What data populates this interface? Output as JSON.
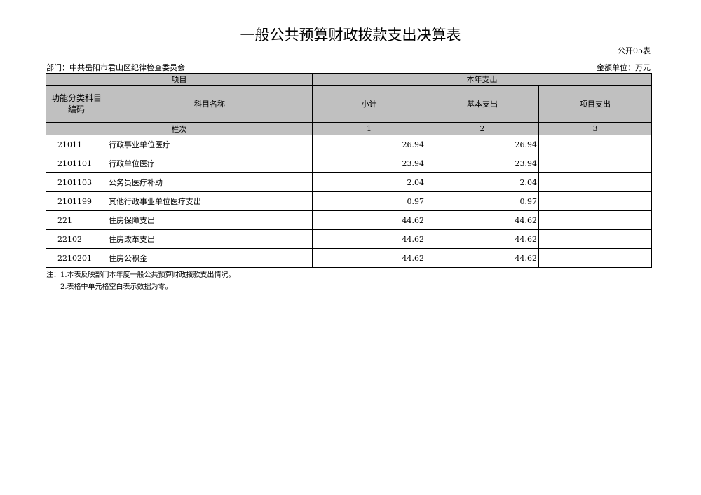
{
  "title": "一般公共预算财政拨款支出决算表",
  "form_no": "公开05表",
  "department": "部门：中共岳阳市君山区纪律检查委员会",
  "unit": "金额单位：万元",
  "headers": {
    "item": "项目",
    "current_year": "本年支出",
    "code": "功能分类科目编码",
    "name": "科目名称",
    "subtotal": "小计",
    "basic": "基本支出",
    "project": "项目支出",
    "col_index": "栏次",
    "idx1": "1",
    "idx2": "2",
    "idx3": "3"
  },
  "rows": [
    {
      "code": "21011",
      "name": "行政事业单位医疗",
      "subtotal": "26.94",
      "basic": "26.94",
      "project": ""
    },
    {
      "code": "2101101",
      "name": "行政单位医疗",
      "subtotal": "23.94",
      "basic": "23.94",
      "project": ""
    },
    {
      "code": "2101103",
      "name": "公务员医疗补助",
      "subtotal": "2.04",
      "basic": "2.04",
      "project": ""
    },
    {
      "code": "2101199",
      "name": "其他行政事业单位医疗支出",
      "subtotal": "0.97",
      "basic": "0.97",
      "project": ""
    },
    {
      "code": "221",
      "name": "住房保障支出",
      "subtotal": "44.62",
      "basic": "44.62",
      "project": ""
    },
    {
      "code": "22102",
      "name": "住房改革支出",
      "subtotal": "44.62",
      "basic": "44.62",
      "project": ""
    },
    {
      "code": "2210201",
      "name": "住房公积金",
      "subtotal": "44.62",
      "basic": "44.62",
      "project": ""
    }
  ],
  "notes": [
    "注：1.本表反映部门本年度一般公共预算财政拨款支出情况。",
    "2.表格中单元格空白表示数据为零。"
  ]
}
